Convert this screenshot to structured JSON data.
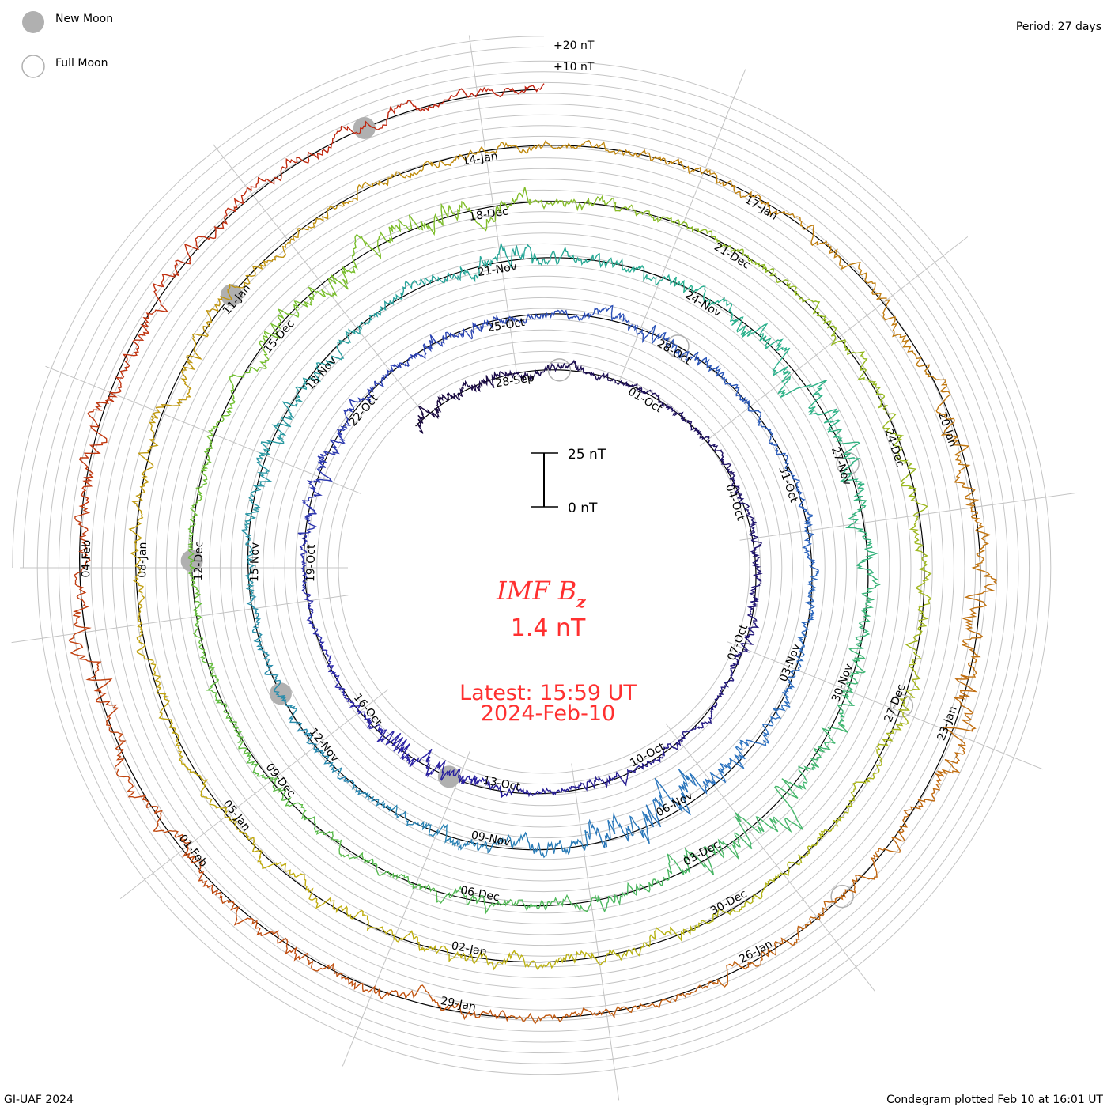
{
  "chart_data": {
    "type": "line",
    "subtype": "condegram-spiral",
    "title": "IMF Bz",
    "title_main": "IMF B",
    "title_sub": "z",
    "current_value": "1.4 nT",
    "latest_time": "Latest: 15:59 UT",
    "latest_date": "2024-Feb-10",
    "period": "Period: 27 days",
    "credit": "GI-UAF 2024",
    "plotted": "Condegram plotted Feb 10 at 16:01 UT",
    "scale_bar": {
      "top_label": "25 nT",
      "bottom_label": "0 nT",
      "value_nT": 25
    },
    "ring_labels": [
      "+20 nT",
      "+10 nT"
    ],
    "legend": [
      {
        "label": "New Moon",
        "style": "filled"
      },
      {
        "label": "Full Moon",
        "style": "outline"
      }
    ],
    "start_date": "2023-09-25T12:00",
    "end_date": "2024-02-10T16:00",
    "period_days": 27,
    "units": "nT",
    "daily_mean_nT": [
      0,
      -1,
      0,
      1,
      0,
      0,
      0,
      1,
      0,
      0,
      0,
      0,
      0,
      1,
      0,
      0,
      0,
      0,
      -1,
      -2,
      0,
      0,
      0,
      0,
      -1,
      0,
      0,
      0,
      1,
      0,
      0,
      0,
      -1,
      0,
      0,
      0,
      0,
      0,
      0,
      0,
      -1,
      -3,
      -2,
      0,
      0,
      0,
      0,
      0,
      0,
      0,
      0,
      0,
      -1,
      0,
      0,
      0,
      1,
      0,
      0,
      0,
      -1,
      -1,
      0,
      0,
      0,
      0,
      1,
      2,
      1,
      0,
      0,
      0,
      0,
      0,
      0,
      0,
      0,
      0,
      0,
      0,
      0,
      1,
      1,
      0,
      0,
      0,
      0,
      0,
      0,
      0,
      0,
      0,
      0,
      0,
      0,
      0,
      0,
      0,
      0,
      0,
      0,
      0,
      0,
      0,
      0,
      0,
      -1,
      0,
      0,
      0,
      0,
      0,
      0,
      0,
      0,
      0,
      0,
      0,
      1,
      1,
      0,
      0,
      0,
      0,
      0,
      0,
      0,
      1,
      0,
      0,
      0,
      0,
      0,
      0,
      0,
      0,
      0,
      0,
      1
    ],
    "daily_spread_nT": [
      5,
      4,
      3,
      3,
      2,
      2,
      2,
      2,
      2,
      3,
      3,
      3,
      2,
      2,
      2,
      3,
      2,
      3,
      6,
      7,
      3,
      2,
      2,
      2,
      4,
      5,
      3,
      3,
      4,
      3,
      3,
      4,
      5,
      3,
      2,
      2,
      3,
      3,
      3,
      4,
      6,
      10,
      9,
      5,
      4,
      4,
      3,
      3,
      3,
      3,
      3,
      4,
      5,
      4,
      3,
      4,
      6,
      5,
      4,
      4,
      7,
      8,
      6,
      5,
      4,
      5,
      6,
      9,
      8,
      5,
      4,
      4,
      3,
      3,
      4,
      4,
      3,
      3,
      3,
      3,
      5,
      7,
      7,
      6,
      4,
      3,
      3,
      3,
      4,
      4,
      4,
      4,
      4,
      3,
      3,
      3,
      4,
      4,
      4,
      4,
      4,
      3,
      3,
      3,
      3,
      4,
      5,
      4,
      3,
      3,
      3,
      3,
      3,
      3,
      4,
      4,
      5,
      5,
      7,
      8,
      5,
      4,
      4,
      3,
      3,
      4,
      4,
      5,
      5,
      5,
      6,
      5,
      6,
      5,
      4,
      4,
      4,
      3,
      3
    ],
    "date_labels": [
      "28-Sep",
      "01-Oct",
      "04-Oct",
      "07-Oct",
      "10-Oct",
      "13-Oct",
      "16-Oct",
      "19-Oct",
      "22-Oct",
      "25-Oct",
      "28-Oct",
      "31-Oct",
      "03-Nov",
      "06-Nov",
      "09-Nov",
      "12-Nov",
      "15-Nov",
      "18-Nov",
      "21-Nov",
      "24-Nov",
      "27-Nov",
      "30-Nov",
      "03-Dec",
      "06-Dec",
      "09-Dec",
      "12-Dec",
      "15-Dec",
      "18-Dec",
      "21-Dec",
      "24-Dec",
      "27-Dec",
      "30-Dec",
      "02-Jan",
      "05-Jan",
      "08-Jan",
      "11-Jan",
      "14-Jan",
      "17-Jan",
      "20-Jan",
      "23-Jan",
      "26-Jan",
      "29-Jan",
      "01-Feb",
      "04-Feb"
    ],
    "new_moons": [
      "2023-10-14",
      "2023-11-13",
      "2023-12-12",
      "2024-01-11",
      "2024-02-09"
    ],
    "full_moons": [
      "2023-09-29",
      "2023-10-28",
      "2023-11-27",
      "2023-12-27",
      "2024-01-25"
    ],
    "colors": {
      "text_accent": "#ff3030",
      "moon": "#b0b0b0",
      "grid": "#bdbdbd",
      "series_gradient": [
        "#1a0a40",
        "#2a22a8",
        "#2a70c0",
        "#28b090",
        "#70c030",
        "#c0b010",
        "#c07010",
        "#c02010"
      ]
    }
  }
}
